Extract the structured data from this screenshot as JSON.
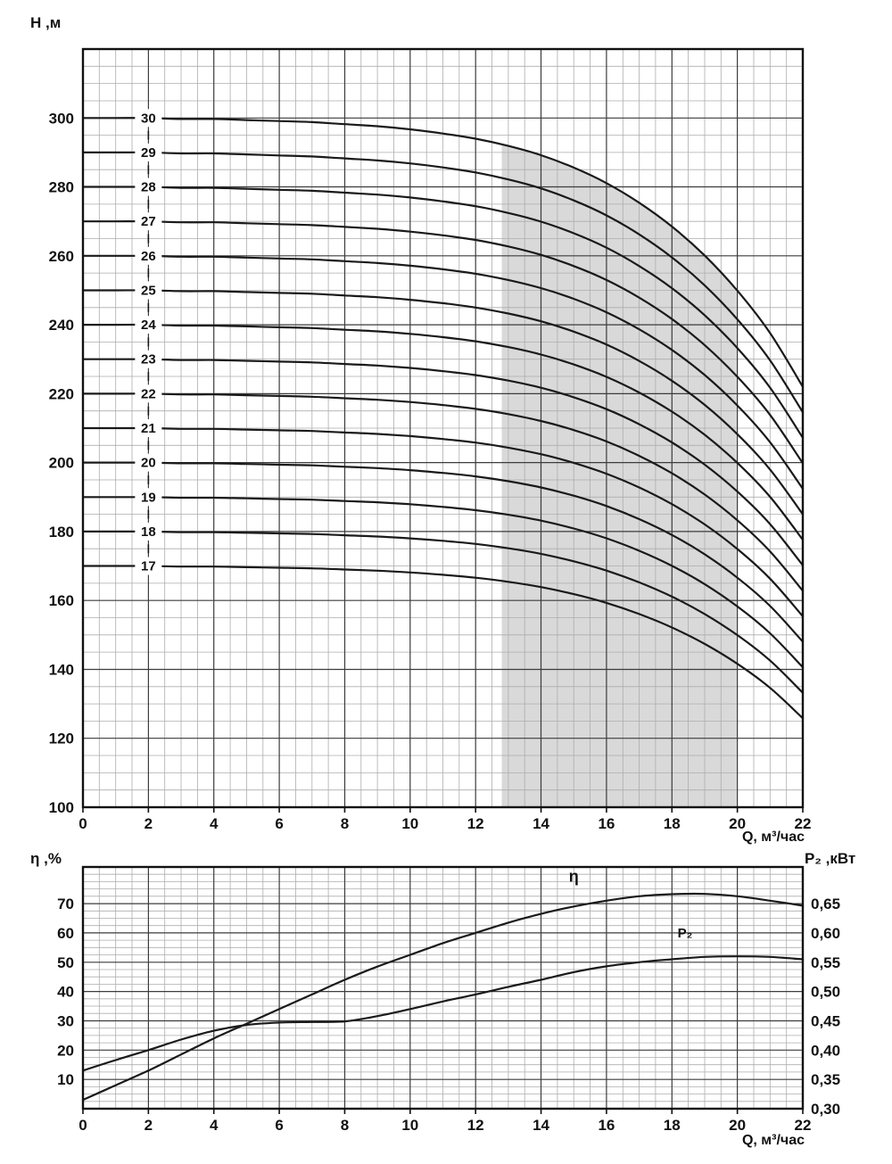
{
  "colors": {
    "background": "#ffffff",
    "frame": "#111111",
    "grid_major": "#3c3c3c",
    "grid_minor": "#adadad",
    "curve": "#1a1a1a",
    "shade": "#d9d9d9",
    "text": "#111111"
  },
  "chart_data": [
    {
      "type": "line",
      "ylabel": "H ,м",
      "xlabel": "Q, м³/час",
      "xlim": [
        0,
        22
      ],
      "ylim": [
        100,
        320
      ],
      "grid": "on",
      "x_ticks": [
        0,
        2,
        4,
        6,
        8,
        10,
        12,
        14,
        16,
        18,
        20,
        22
      ],
      "x_minor_step": 0.5,
      "y_ticks": [
        100,
        120,
        140,
        160,
        180,
        200,
        220,
        240,
        260,
        280,
        300
      ],
      "y_minor_step": 5,
      "stages": [
        30,
        29,
        28,
        27,
        26,
        25,
        24,
        23,
        22,
        21,
        20,
        19,
        18,
        17
      ],
      "stage_label_q": 2,
      "q": [
        0,
        1,
        2,
        3,
        4,
        5,
        6,
        7,
        8,
        9,
        10,
        11,
        12,
        13,
        14,
        15,
        16,
        17,
        18,
        19,
        20,
        21,
        22
      ],
      "single_stage_head": [
        10.0,
        10.0,
        10.0,
        9.99,
        9.99,
        9.98,
        9.97,
        9.96,
        9.94,
        9.92,
        9.89,
        9.85,
        9.8,
        9.73,
        9.64,
        9.52,
        9.37,
        9.18,
        8.95,
        8.67,
        8.33,
        7.92,
        7.4
      ],
      "shaded_region": {
        "q_from": 12.8,
        "q_to": 20.0
      }
    },
    {
      "type": "line",
      "xlabel": "Q, м³/час",
      "ylabel_left": "η ,%",
      "ylabel_right": "P₂ ,кВт",
      "xlim": [
        0,
        22
      ],
      "ylim_left": [
        0,
        82.5
      ],
      "ylim_right": [
        0.3,
        0.7125
      ],
      "grid": "on",
      "x_ticks": [
        0,
        2,
        4,
        6,
        8,
        10,
        12,
        14,
        16,
        18,
        20,
        22
      ],
      "x_minor_step": 0.5,
      "left_ticks": [
        70,
        60,
        50,
        40,
        30,
        20,
        10
      ],
      "left_minor_step": 2.5,
      "right_ticks": [
        {
          "v": 0.65,
          "label": "0,65"
        },
        {
          "v": 0.6,
          "label": "0,60"
        },
        {
          "v": 0.55,
          "label": "0,55"
        },
        {
          "v": 0.5,
          "label": "0,50"
        },
        {
          "v": 0.45,
          "label": "0,45"
        },
        {
          "v": 0.4,
          "label": "0,40"
        },
        {
          "v": 0.35,
          "label": "0,35"
        },
        {
          "v": 0.3,
          "label": "0,30"
        }
      ],
      "series": [
        {
          "name": "η",
          "axis": "left",
          "q": [
            0,
            1,
            2,
            3,
            4,
            5,
            6,
            7,
            8,
            9,
            10,
            11,
            12,
            13,
            14,
            15,
            16,
            17,
            18,
            19,
            20,
            21,
            22
          ],
          "values": [
            3,
            8,
            13,
            18.5,
            24,
            29,
            34,
            39,
            44,
            48.5,
            52.5,
            56.5,
            60,
            63.5,
            66.5,
            69,
            71,
            72.5,
            73.2,
            73.3,
            72.5,
            71,
            69.3
          ],
          "label": {
            "q": 15,
            "v": 77.5
          }
        },
        {
          "name": "P₂",
          "axis": "right",
          "q": [
            0,
            1,
            2,
            3,
            4,
            5,
            6,
            7,
            8,
            9,
            10,
            11,
            12,
            13,
            14,
            15,
            16,
            17,
            18,
            19,
            20,
            21,
            22
          ],
          "values": [
            0.365,
            0.383,
            0.4,
            0.418,
            0.433,
            0.443,
            0.447,
            0.448,
            0.449,
            0.458,
            0.47,
            0.483,
            0.495,
            0.508,
            0.52,
            0.533,
            0.543,
            0.55,
            0.555,
            0.559,
            0.56,
            0.559,
            0.555
          ],
          "label": {
            "q": 18.4,
            "v": 0.592
          }
        }
      ]
    }
  ]
}
